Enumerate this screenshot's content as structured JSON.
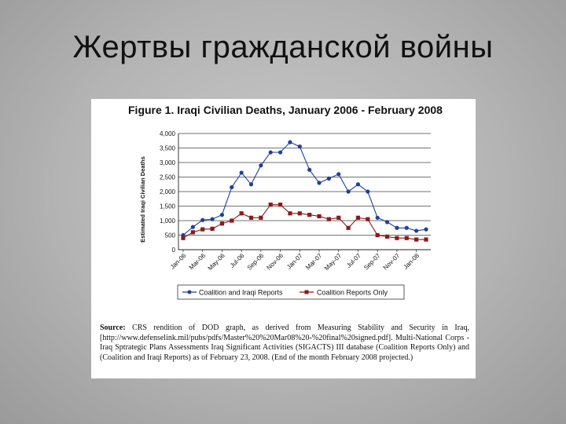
{
  "slide": {
    "title": "Жертвы гражданской войны"
  },
  "figure": {
    "title": "Figure 1.  Iraqi Civilian Deaths, January 2006 - February 2008",
    "source_label": "Source:",
    "source_text": " CRS rendition of DOD graph, as derived from Measuring Stability and Security in Iraq, [http://www.defenselink.mil/pubs/pdfs/Master%20%20Mar08%20-%20final%20signed.pdf]. Multi-National Corps - Iraq Sptrategic Plans Assessments Iraq Significant Activities (SIGACTS) III database (Coalition Reports Only) and (Coalition and Iraqi Reports) as of February 23, 2008. (End of the month February 2008 projected.)"
  },
  "colors": {
    "series1": "#1f3f99",
    "series2": "#8b1a1a",
    "grid": "#444444"
  },
  "chart_data": {
    "type": "line",
    "title": "Figure 1.  Iraqi Civilian Deaths, January 2006 - February 2008",
    "xlabel": "",
    "ylabel": "Estimated Iraqi Civilian Deaths",
    "ylim": [
      0,
      4000
    ],
    "yticks": [
      "4,000",
      "3,500",
      "3,000",
      "2,500",
      "2,000",
      "1,500",
      "1,000",
      "500",
      "0"
    ],
    "ytick_values": [
      4000,
      3500,
      3000,
      2500,
      2000,
      1500,
      1000,
      500,
      0
    ],
    "x": [
      "Jan-06",
      "Feb-06",
      "Mar-06",
      "Apr-06",
      "May-06",
      "Jun-06",
      "Jul-06",
      "Aug-06",
      "Sep-06",
      "Oct-06",
      "Nov-06",
      "Dec-06",
      "Jan-07",
      "Feb-07",
      "Mar-07",
      "Apr-07",
      "May-07",
      "Jun-07",
      "Jul-07",
      "Aug-07",
      "Sep-07",
      "Oct-07",
      "Nov-07",
      "Dec-07",
      "Jan-08",
      "Feb-08"
    ],
    "xtick_labels": [
      "Jan-06",
      "Mar-06",
      "May-06",
      "Jul-06",
      "Sep-06",
      "Nov-06",
      "Jan-07",
      "Mar-07",
      "May-07",
      "Jul-07",
      "Sep-07",
      "Nov-07",
      "Jan-08"
    ],
    "grid": true,
    "legend_position": "bottom",
    "series": [
      {
        "name": "Coalition and Iraqi Reports",
        "values": [
          500,
          780,
          1020,
          1050,
          1200,
          2150,
          2650,
          2250,
          2900,
          3350,
          3350,
          3700,
          3550,
          2750,
          2300,
          2450,
          2600,
          2000,
          2250,
          2000,
          1100,
          950,
          750,
          750,
          650,
          700
        ]
      },
      {
        "name": "Coalition Reports Only",
        "values": [
          400,
          600,
          700,
          720,
          900,
          1000,
          1250,
          1100,
          1100,
          1550,
          1550,
          1250,
          1250,
          1200,
          1150,
          1050,
          1100,
          750,
          1100,
          1050,
          500,
          450,
          400,
          400,
          350,
          350
        ]
      }
    ]
  }
}
